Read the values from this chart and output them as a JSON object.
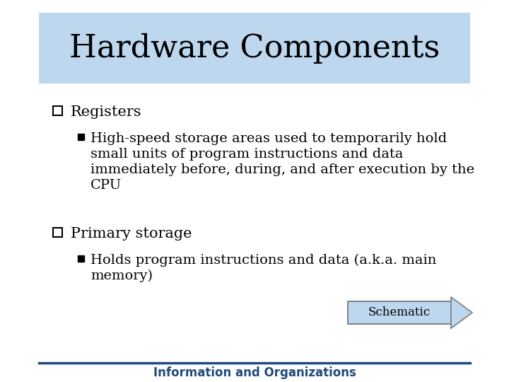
{
  "title": "Hardware Components",
  "title_fontsize": 32,
  "title_bg_color": "#BDD7EE",
  "title_text_color": "#000000",
  "bg_color": "#FFFFFF",
  "bullet1_label": "Registers",
  "bullet1_sub_lines": [
    "High-speed storage areas used to temporarily hold",
    "small units of program instructions and data",
    "immediately before, during, and after execution by the",
    "CPU"
  ],
  "bullet2_label": "Primary storage",
  "bullet2_sub_lines": [
    "Holds program instructions and data (a.k.a. main",
    "memory)"
  ],
  "schematic_label": "Schematic",
  "footer_label": "Information and Organizations",
  "footer_color": "#1F497D",
  "title_fontsize_pt": 32,
  "bullet_fontsize_pt": 15,
  "sub_fontsize_pt": 14,
  "footer_fontsize_pt": 12,
  "schematic_fontsize_pt": 12,
  "arrow_body_color": "#BDD7EE",
  "arrow_edge_color": "#808080",
  "line_color": "#1F497D"
}
